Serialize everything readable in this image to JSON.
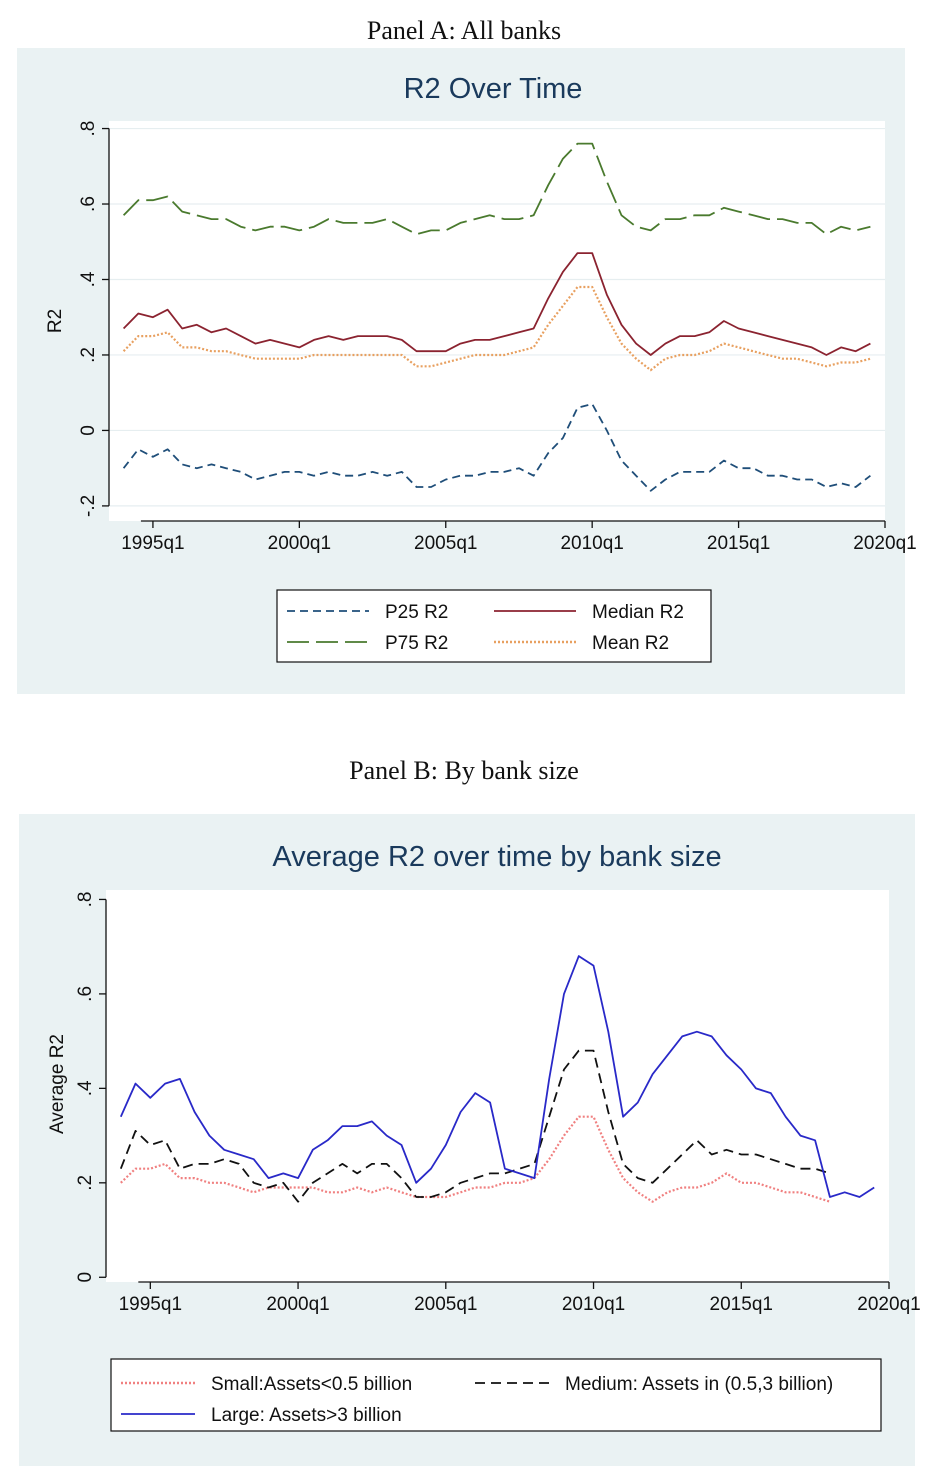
{
  "captions": {
    "panel_a": "Panel A: All banks",
    "panel_b": "Panel B: By bank size"
  },
  "chart_data": [
    {
      "id": "panelA",
      "type": "line",
      "title": "R2  Over Time",
      "xlabel": "",
      "ylabel": "R2",
      "x_ticks": [
        "1995q1",
        "2000q1",
        "2005q1",
        "2010q1",
        "2015q1",
        "2020q1"
      ],
      "x_tick_values": [
        1995,
        2000,
        2005,
        2010,
        2015,
        2020
      ],
      "y_ticks": [
        "-.2",
        "0",
        ".2",
        ".4",
        ".6",
        ".8"
      ],
      "y_tick_values": [
        -0.2,
        0,
        0.2,
        0.4,
        0.6,
        0.8
      ],
      "xlim": [
        1993.5,
        2020
      ],
      "ylim": [
        -0.24,
        0.82
      ],
      "grid": true,
      "legend_position": "bottom",
      "x": [
        1994,
        1994.5,
        1995,
        1995.5,
        1996,
        1996.5,
        1997,
        1997.5,
        1998,
        1998.5,
        1999,
        1999.5,
        2000,
        2000.5,
        2001,
        2001.5,
        2002,
        2002.5,
        2003,
        2003.5,
        2004,
        2004.5,
        2005,
        2005.5,
        2006,
        2006.5,
        2007,
        2007.5,
        2008,
        2008.5,
        2009,
        2009.5,
        2010,
        2010.5,
        2011,
        2011.5,
        2012,
        2012.5,
        2013,
        2013.5,
        2014,
        2014.5,
        2015,
        2015.5,
        2016,
        2016.5,
        2017,
        2017.5,
        2018,
        2018.5,
        2019,
        2019.5
      ],
      "series": [
        {
          "name": "P25 R2",
          "color": "#1f4e79",
          "dash": "8 5",
          "values": [
            -0.1,
            -0.05,
            -0.07,
            -0.05,
            -0.09,
            -0.1,
            -0.09,
            -0.1,
            -0.11,
            -0.13,
            -0.12,
            -0.11,
            -0.11,
            -0.12,
            -0.11,
            -0.12,
            -0.12,
            -0.11,
            -0.12,
            -0.11,
            -0.15,
            -0.15,
            -0.13,
            -0.12,
            -0.12,
            -0.11,
            -0.11,
            -0.1,
            -0.12,
            -0.06,
            -0.02,
            0.06,
            0.07,
            0.0,
            -0.08,
            -0.12,
            -0.16,
            -0.13,
            -0.11,
            -0.11,
            -0.11,
            -0.08,
            -0.1,
            -0.1,
            -0.12,
            -0.12,
            -0.13,
            -0.13,
            -0.15,
            -0.14,
            -0.15,
            -0.12
          ]
        },
        {
          "name": "Median R2",
          "color": "#8b2330",
          "dash": "",
          "values": [
            0.27,
            0.31,
            0.3,
            0.32,
            0.27,
            0.28,
            0.26,
            0.27,
            0.25,
            0.23,
            0.24,
            0.23,
            0.22,
            0.24,
            0.25,
            0.24,
            0.25,
            0.25,
            0.25,
            0.24,
            0.21,
            0.21,
            0.21,
            0.23,
            0.24,
            0.24,
            0.25,
            0.26,
            0.27,
            0.35,
            0.42,
            0.47,
            0.47,
            0.36,
            0.28,
            0.23,
            0.2,
            0.23,
            0.25,
            0.25,
            0.26,
            0.29,
            0.27,
            0.26,
            0.25,
            0.24,
            0.23,
            0.22,
            0.2,
            0.22,
            0.21,
            0.23
          ]
        },
        {
          "name": "P75 R2",
          "color": "#4a7a2e",
          "dash": "22 7",
          "values": [
            0.57,
            0.61,
            0.61,
            0.62,
            0.58,
            0.57,
            0.56,
            0.56,
            0.54,
            0.53,
            0.54,
            0.54,
            0.53,
            0.54,
            0.56,
            0.55,
            0.55,
            0.55,
            0.56,
            0.54,
            0.52,
            0.53,
            0.53,
            0.55,
            0.56,
            0.57,
            0.56,
            0.56,
            0.57,
            0.65,
            0.72,
            0.76,
            0.76,
            0.66,
            0.57,
            0.54,
            0.53,
            0.56,
            0.56,
            0.57,
            0.57,
            0.59,
            0.58,
            0.57,
            0.56,
            0.56,
            0.55,
            0.55,
            0.52,
            0.54,
            0.53,
            0.54
          ]
        },
        {
          "name": "Mean R2",
          "color": "#e8a060",
          "dash": "2 2",
          "values": [
            0.21,
            0.25,
            0.25,
            0.26,
            0.22,
            0.22,
            0.21,
            0.21,
            0.2,
            0.19,
            0.19,
            0.19,
            0.19,
            0.2,
            0.2,
            0.2,
            0.2,
            0.2,
            0.2,
            0.2,
            0.17,
            0.17,
            0.18,
            0.19,
            0.2,
            0.2,
            0.2,
            0.21,
            0.22,
            0.28,
            0.33,
            0.38,
            0.38,
            0.3,
            0.23,
            0.19,
            0.16,
            0.19,
            0.2,
            0.2,
            0.21,
            0.23,
            0.22,
            0.21,
            0.2,
            0.19,
            0.19,
            0.18,
            0.17,
            0.18,
            0.18,
            0.19
          ]
        }
      ]
    },
    {
      "id": "panelB",
      "type": "line",
      "title": "Average R2 over time by bank size",
      "xlabel": "",
      "ylabel": "Average R2",
      "x_ticks": [
        "1995q1",
        "2000q1",
        "2005q1",
        "2010q1",
        "2015q1",
        "2020q1"
      ],
      "x_tick_values": [
        1995,
        2000,
        2005,
        2010,
        2015,
        2020
      ],
      "y_ticks": [
        "0",
        ".2",
        ".4",
        ".6",
        ".8"
      ],
      "y_tick_values": [
        0,
        0.2,
        0.4,
        0.6,
        0.8
      ],
      "xlim": [
        1993.5,
        2020
      ],
      "ylim": [
        -0.01,
        0.82
      ],
      "grid": false,
      "legend_position": "bottom",
      "x": [
        1994,
        1994.5,
        1995,
        1995.5,
        1996,
        1996.5,
        1997,
        1997.5,
        1998,
        1998.5,
        1999,
        1999.5,
        2000,
        2000.5,
        2001,
        2001.5,
        2002,
        2002.5,
        2003,
        2003.5,
        2004,
        2004.5,
        2005,
        2005.5,
        2006,
        2006.5,
        2007,
        2007.5,
        2008,
        2008.5,
        2009,
        2009.5,
        2010,
        2010.5,
        2011,
        2011.5,
        2012,
        2012.5,
        2013,
        2013.5,
        2014,
        2014.5,
        2015,
        2015.5,
        2016,
        2016.5,
        2017,
        2017.5,
        2018,
        2018.5,
        2019,
        2019.5
      ],
      "series": [
        {
          "name": "Small:Assets<0.5 billion",
          "color": "#f08080",
          "dash": "2 2",
          "values": [
            0.2,
            0.23,
            0.23,
            0.24,
            0.21,
            0.21,
            0.2,
            0.2,
            0.19,
            0.18,
            0.19,
            0.19,
            0.19,
            0.19,
            0.18,
            0.18,
            0.19,
            0.18,
            0.19,
            0.18,
            0.17,
            0.17,
            0.17,
            0.18,
            0.19,
            0.19,
            0.2,
            0.2,
            0.21,
            0.25,
            0.3,
            0.34,
            0.34,
            0.27,
            0.21,
            0.18,
            0.16,
            0.18,
            0.19,
            0.19,
            0.2,
            0.22,
            0.2,
            0.2,
            0.19,
            0.18,
            0.18,
            0.17,
            0.16,
            null,
            null,
            null
          ]
        },
        {
          "name": "Medium: Assets in (0.5,3 billion)",
          "color": "#111111",
          "dash": "10 6",
          "values": [
            0.23,
            0.31,
            0.28,
            0.29,
            0.23,
            0.24,
            0.24,
            0.25,
            0.24,
            0.2,
            0.19,
            0.2,
            0.16,
            0.2,
            0.22,
            0.24,
            0.22,
            0.24,
            0.24,
            0.21,
            0.17,
            0.17,
            0.18,
            0.2,
            0.21,
            0.22,
            0.22,
            0.23,
            0.24,
            0.34,
            0.44,
            0.48,
            0.48,
            0.35,
            0.24,
            0.21,
            0.2,
            0.23,
            0.26,
            0.29,
            0.26,
            0.27,
            0.26,
            0.26,
            0.25,
            0.24,
            0.23,
            0.23,
            0.22,
            null,
            null,
            null
          ]
        },
        {
          "name": "Large: Assets>3 billion",
          "color": "#2929c8",
          "dash": "",
          "values": [
            0.34,
            0.41,
            0.38,
            0.41,
            0.42,
            0.35,
            0.3,
            0.27,
            0.26,
            0.25,
            0.21,
            0.22,
            0.21,
            0.27,
            0.29,
            0.32,
            0.32,
            0.33,
            0.3,
            0.28,
            0.2,
            0.23,
            0.28,
            0.35,
            0.39,
            0.37,
            0.23,
            0.22,
            0.21,
            0.42,
            0.6,
            0.68,
            0.66,
            0.52,
            0.34,
            0.37,
            0.43,
            0.47,
            0.51,
            0.52,
            0.51,
            0.47,
            0.44,
            0.4,
            0.39,
            0.34,
            0.3,
            0.29,
            0.17,
            0.18,
            0.17,
            0.19
          ]
        }
      ]
    }
  ]
}
